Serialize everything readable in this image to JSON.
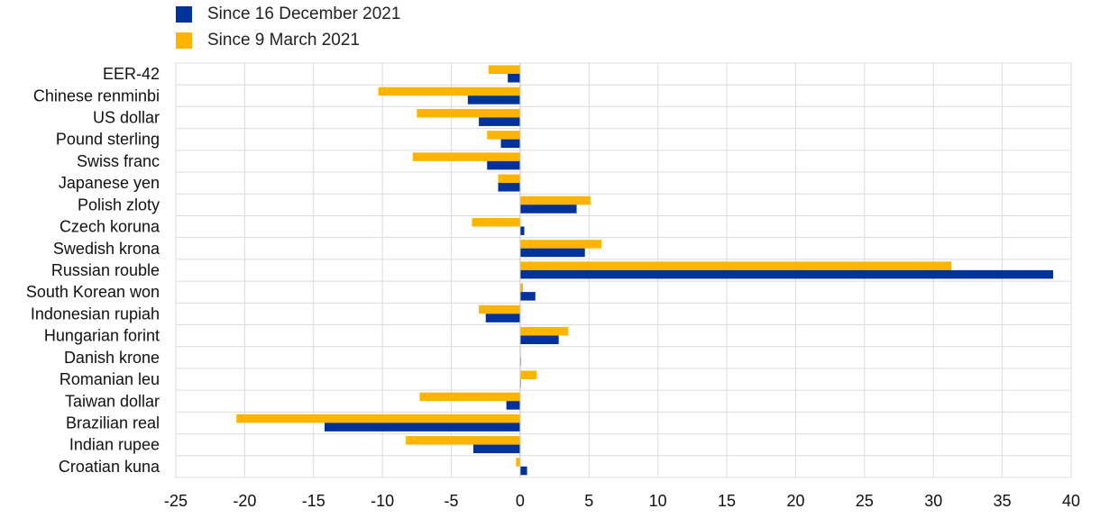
{
  "chart_data": {
    "type": "bar",
    "orientation": "horizontal",
    "title": "",
    "xlabel": "",
    "ylabel": "",
    "xlim": [
      -25,
      40
    ],
    "xticks": [
      -25,
      -20,
      -15,
      -10,
      -5,
      0,
      5,
      10,
      15,
      20,
      25,
      30,
      35,
      40
    ],
    "grid": true,
    "legend_position": "top-left",
    "categories": [
      "EER-42",
      "Chinese renminbi",
      "US dollar",
      "Pound sterling",
      "Swiss franc",
      "Japanese yen",
      "Polish zloty",
      "Czech koruna",
      "Swedish krona",
      "Russian rouble",
      "South Korean won",
      "Indonesian rupiah",
      "Hungarian forint",
      "Danish krone",
      "Romanian leu",
      "Taiwan dollar",
      "Brazilian real",
      "Indian rupee",
      "Croatian kuna"
    ],
    "series": [
      {
        "name": "Since 16 December 2021",
        "color": "#003399",
        "values": [
          -0.9,
          -3.8,
          -3.0,
          -1.4,
          -2.4,
          -1.6,
          4.1,
          0.3,
          4.7,
          38.7,
          1.1,
          -2.5,
          2.8,
          0.05,
          0.0,
          -1.0,
          -14.2,
          -3.4,
          0.5
        ]
      },
      {
        "name": "Since 9 March 2021",
        "color": "#FFB400",
        "values": [
          -2.3,
          -10.3,
          -7.5,
          -2.4,
          -7.8,
          -1.6,
          5.1,
          -3.5,
          5.9,
          31.3,
          0.2,
          -3.0,
          3.5,
          0.05,
          1.2,
          -7.3,
          -20.6,
          -8.3,
          -0.3
        ]
      }
    ]
  }
}
